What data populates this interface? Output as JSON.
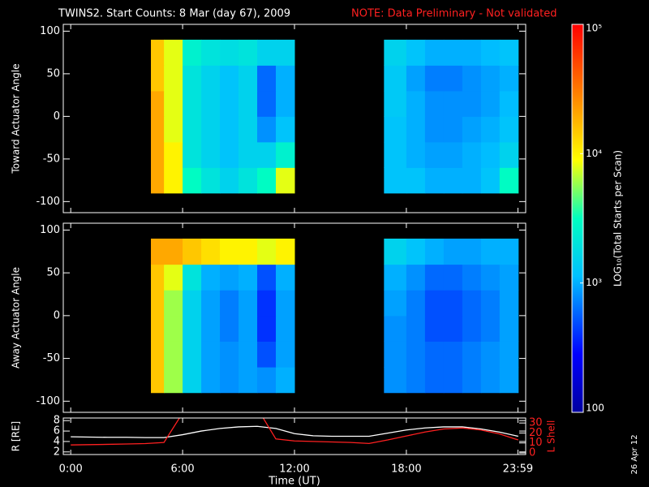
{
  "title": "TWINS2. Start Counts:  8 Mar (day  67), 2009",
  "note": "NOTE: Data Preliminary - Not validated",
  "date_stamp": "26 Apr 12",
  "xaxis": {
    "label": "Time (UT)",
    "xlim": [
      -0.4,
      24.4
    ],
    "xticks": [
      {
        "value": 0,
        "label": "0:00"
      },
      {
        "value": 6,
        "label": "6:00"
      },
      {
        "value": 12,
        "label": "12:00"
      },
      {
        "value": 18,
        "label": "18:00"
      },
      {
        "value": 23.983,
        "label": "23:59"
      }
    ]
  },
  "colorbar": {
    "label": "LOG₁₀(Total Starts per Scan)",
    "log": true,
    "zlim": [
      100,
      100000
    ],
    "zticks": [
      100,
      {
        "value": 1000,
        "label": "10³"
      },
      {
        "value": 10000,
        "label": "10⁴"
      },
      {
        "value": 100000,
        "label": "10⁵"
      }
    ]
  },
  "chart_data": [
    {
      "type": "heatmap",
      "ylabel": "Toward Actuator Angle",
      "ylim": [
        -113,
        108
      ],
      "yticks": [
        -100,
        -50,
        0,
        50,
        100
      ],
      "x_bins": [
        4.3,
        5,
        6,
        7,
        8,
        9,
        10,
        11,
        12,
        16.8,
        18,
        19,
        20,
        21,
        22,
        23,
        24
      ],
      "y_bins": [
        -90,
        -60,
        -30,
        0,
        30,
        60,
        90
      ],
      "z": [
        [
          20000,
          10000,
          3000,
          2000,
          1500,
          2000,
          3000,
          8000,
          null,
          1200,
          1200,
          1000,
          1000,
          1000,
          1200,
          3000
        ],
        [
          20000,
          10000,
          2000,
          1500,
          1200,
          1500,
          1500,
          2500,
          null,
          1200,
          1000,
          900,
          900,
          1000,
          1100,
          1500
        ],
        [
          20000,
          8000,
          2000,
          1500,
          1200,
          1500,
          800,
          1200,
          null,
          1200,
          1000,
          800,
          800,
          900,
          1000,
          1200
        ],
        [
          20000,
          8000,
          2000,
          1500,
          1200,
          1500,
          600,
          1000,
          null,
          1300,
          1000,
          800,
          800,
          800,
          900,
          1100
        ],
        [
          15000,
          8000,
          2000,
          1500,
          1200,
          1500,
          600,
          1000,
          null,
          1300,
          900,
          700,
          700,
          800,
          900,
          1000
        ],
        [
          15000,
          8000,
          2500,
          2000,
          1800,
          2000,
          1500,
          1500,
          null,
          1500,
          1200,
          1000,
          1000,
          1000,
          1100,
          1200
        ]
      ]
    },
    {
      "type": "heatmap",
      "ylabel": "Away Actuator Angle",
      "ylim": [
        -113,
        108
      ],
      "yticks": [
        -100,
        -50,
        0,
        50,
        100
      ],
      "x_bins": [
        4.3,
        5,
        6,
        7,
        8,
        9,
        10,
        11,
        12,
        16.8,
        18,
        19,
        20,
        21,
        22,
        23,
        24
      ],
      "y_bins": [
        -90,
        -60,
        -30,
        0,
        30,
        60,
        90
      ],
      "z": [
        [
          15000,
          6000,
          1500,
          900,
          800,
          900,
          800,
          1000,
          null,
          800,
          700,
          600,
          600,
          700,
          800,
          900
        ],
        [
          15000,
          6000,
          1500,
          900,
          800,
          900,
          500,
          900,
          null,
          800,
          700,
          600,
          600,
          700,
          800,
          900
        ],
        [
          15000,
          6000,
          1500,
          900,
          700,
          900,
          400,
          900,
          null,
          800,
          700,
          500,
          500,
          600,
          700,
          900
        ],
        [
          15000,
          6000,
          1500,
          900,
          700,
          900,
          400,
          900,
          null,
          900,
          700,
          500,
          500,
          600,
          700,
          900
        ],
        [
          15000,
          8000,
          2000,
          1000,
          900,
          1000,
          500,
          1000,
          null,
          1000,
          800,
          600,
          600,
          700,
          800,
          900
        ],
        [
          20000,
          20000,
          15000,
          12000,
          10000,
          10000,
          8000,
          10000,
          null,
          1500,
          1200,
          1000,
          900,
          900,
          1000,
          1000
        ]
      ]
    },
    {
      "type": "line",
      "ylabel": "R [RE]",
      "ylim": [
        1.5,
        8.5
      ],
      "yticks": [
        2,
        4,
        6,
        8
      ],
      "y2label": "L Shell",
      "y2lim": [
        -1.6,
        35
      ],
      "y2ticks": [
        0,
        10,
        20,
        30
      ],
      "x": [
        0,
        1,
        2,
        3,
        4,
        5,
        6,
        7,
        8,
        9,
        10,
        11,
        12,
        13,
        14,
        15,
        16,
        17,
        18,
        19,
        20,
        21,
        22,
        23,
        24
      ],
      "series": [
        {
          "color": "#ffffff",
          "values": [
            4.9,
            4.85,
            4.8,
            4.8,
            4.75,
            4.75,
            5.3,
            6.0,
            6.5,
            6.8,
            6.9,
            6.5,
            5.5,
            5.1,
            5.0,
            5.0,
            5.0,
            5.6,
            6.2,
            6.6,
            6.8,
            6.8,
            6.4,
            5.8,
            5.0
          ]
        },
        {
          "color": "#ff2020",
          "axis": "y2",
          "values": [
            8,
            8.3,
            8.6,
            9,
            9.4,
            10.5,
            40,
            null,
            null,
            null,
            45,
            14,
            12,
            11.5,
            11,
            10.5,
            9.5,
            13,
            17,
            21,
            24,
            25,
            23,
            19,
            13
          ]
        }
      ]
    }
  ]
}
